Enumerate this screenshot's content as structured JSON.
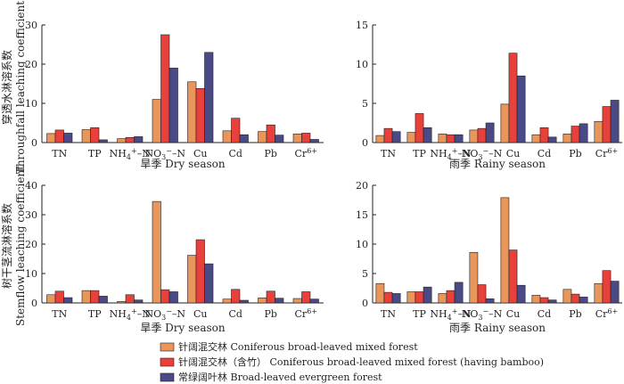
{
  "colors": {
    "s1": "#e8965a",
    "s2": "#e8413c",
    "s3": "#4a4a86",
    "ink": "#231f20"
  },
  "row_labels": {
    "top_cn": "穿透水淋溶系数",
    "top_en": "Throughfall leaching coefficient",
    "bottom_cn": "树干茎流淋溶系数",
    "bottom_en": "Stemflow leaching coefficient"
  },
  "legend": [
    {
      "key": "s1",
      "label": "针阔混交林 Coniferous broad-leaved mixed forest"
    },
    {
      "key": "s2",
      "label": "针阔混交林（含竹） Coniferous broad-leaved mixed forest (having bamboo)"
    },
    {
      "key": "s3",
      "label": "常绿阔叶林  Broad-leaved evergreen forest"
    }
  ],
  "chart_data": [
    {
      "id": "tf_dry",
      "type": "bar",
      "title": "旱季 Dry season",
      "categories": [
        "TN",
        "TP",
        "NH₄⁺–N",
        "NO₃⁻–N",
        "Cu",
        "Cd",
        "Pb",
        "Cr⁶⁺"
      ],
      "ylim": [
        0,
        30
      ],
      "yticks": [
        0,
        10,
        20,
        30
      ],
      "series": [
        {
          "name": "针阔混交林 Coniferous broad-leaved mixed forest",
          "values": [
            2.3,
            3.3,
            1.0,
            11.0,
            15.5,
            3.0,
            2.8,
            2.2
          ]
        },
        {
          "name": "针阔混交林（含竹） Coniferous broad-leaved mixed forest (having bamboo)",
          "values": [
            3.2,
            3.8,
            1.3,
            27.5,
            13.8,
            6.2,
            4.5,
            2.4
          ]
        },
        {
          "name": "常绿阔叶林 Broad-leaved evergreen forest",
          "values": [
            2.4,
            0.7,
            1.5,
            19.0,
            23.0,
            2.0,
            1.9,
            0.8
          ]
        }
      ]
    },
    {
      "id": "tf_rainy",
      "type": "bar",
      "title": "雨季 Rainy season",
      "categories": [
        "TN",
        "TP",
        "NH₄⁺–N",
        "NO₃⁻–N",
        "Cu",
        "Cd",
        "Pb",
        "Cr⁶⁺"
      ],
      "ylim": [
        0,
        15
      ],
      "yticks": [
        0,
        5,
        10,
        15
      ],
      "series": [
        {
          "name": "针阔混交林 Coniferous broad-leaved mixed forest",
          "values": [
            0.9,
            1.3,
            1.1,
            1.6,
            4.9,
            1.0,
            1.1,
            2.7
          ]
        },
        {
          "name": "针阔混交林（含竹） Coniferous broad-leaved mixed forest (having bamboo)",
          "values": [
            1.8,
            3.7,
            1.0,
            1.8,
            11.4,
            1.9,
            2.1,
            4.6
          ]
        },
        {
          "name": "常绿阔叶林 Broad-leaved evergreen forest",
          "values": [
            1.4,
            1.9,
            1.0,
            2.5,
            8.5,
            0.7,
            2.4,
            5.4
          ]
        }
      ]
    },
    {
      "id": "sf_dry",
      "type": "bar",
      "title": "旱季 Dry season",
      "categories": [
        "TN",
        "TP",
        "NH₄⁺–N",
        "NO₃⁻–N",
        "Cu",
        "Cd",
        "Pb",
        "Cr⁶⁺"
      ],
      "ylim": [
        0,
        40
      ],
      "yticks": [
        0,
        10,
        20,
        30,
        40
      ],
      "series": [
        {
          "name": "针阔混交林 Coniferous broad-leaved mixed forest",
          "values": [
            2.8,
            4.2,
            0.5,
            34.5,
            16.2,
            1.3,
            1.7,
            1.5
          ]
        },
        {
          "name": "针阔混交林（含竹） Coniferous broad-leaved mixed forest (having bamboo)",
          "values": [
            4.0,
            4.2,
            2.8,
            4.5,
            21.5,
            4.6,
            4.0,
            3.8
          ]
        },
        {
          "name": "常绿阔叶林 Broad-leaved evergreen forest",
          "values": [
            1.8,
            2.3,
            1.0,
            3.8,
            13.3,
            0.9,
            1.6,
            1.3
          ]
        }
      ]
    },
    {
      "id": "sf_rainy",
      "type": "bar",
      "title": "雨季 Rainy season",
      "categories": [
        "TN",
        "TP",
        "NH₄⁺–N",
        "NO₃⁻–N",
        "Cu",
        "Cd",
        "Pb",
        "Cr⁶⁺"
      ],
      "ylim": [
        0,
        20
      ],
      "yticks": [
        0,
        5,
        10,
        15,
        20
      ],
      "series": [
        {
          "name": "针阔混交林 Coniferous broad-leaved mixed forest",
          "values": [
            3.3,
            1.9,
            1.6,
            8.6,
            17.9,
            1.3,
            2.3,
            3.3
          ]
        },
        {
          "name": "针阔混交林（含竹） Coniferous broad-leaved mixed forest (having bamboo)",
          "values": [
            1.8,
            1.9,
            2.1,
            3.1,
            9.0,
            0.9,
            1.5,
            5.5
          ]
        },
        {
          "name": "常绿阔叶林 Broad-leaved evergreen forest",
          "values": [
            1.6,
            2.7,
            3.5,
            0.7,
            3.0,
            0.5,
            1.0,
            3.7
          ]
        }
      ]
    }
  ]
}
